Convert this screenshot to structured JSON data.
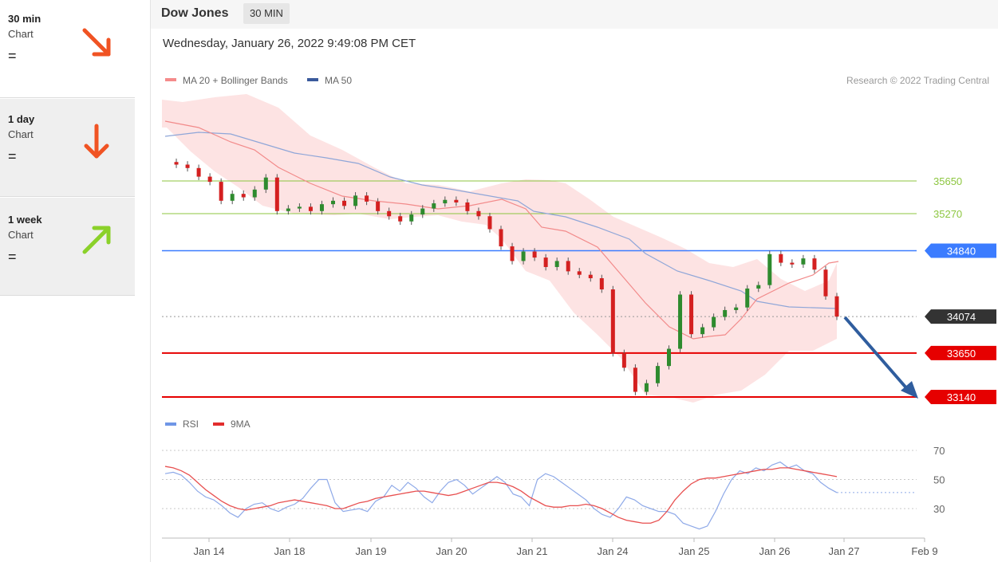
{
  "sidebar": {
    "items": [
      {
        "title": "30 min",
        "subtitle": "Chart",
        "status": "=",
        "direction": "down-right",
        "color": "#f05323"
      },
      {
        "title": "1 day",
        "subtitle": "Chart",
        "status": "=",
        "direction": "down",
        "color": "#f05323"
      },
      {
        "title": "1 week",
        "subtitle": "Chart",
        "status": "=",
        "direction": "up-right",
        "color": "#8bd12a"
      }
    ]
  },
  "header": {
    "symbol": "Dow Jones",
    "timeframe": "30 MIN",
    "datetime": "Wednesday, January 26, 2022 9:49:08 PM CET"
  },
  "legend": {
    "ma20": "MA 20 + Bollinger Bands",
    "ma50": "MA 50",
    "copyright": "Research © 2022 Trading Central",
    "rsi": "RSI",
    "ma9": "9MA"
  },
  "chart_data": {
    "type": "line",
    "x_labels": [
      "Jan 14",
      "Jan 18",
      "Jan 19",
      "Jan 20",
      "Jan 21",
      "Jan 24",
      "Jan 25",
      "Jan 26",
      "Jan 27",
      "Feb 9"
    ],
    "levels": [
      {
        "value": 35650,
        "label": "35650",
        "kind": "resistance-minor",
        "color": "#8cc63f"
      },
      {
        "value": 35270,
        "label": "35270",
        "kind": "resistance-minor",
        "color": "#8cc63f"
      },
      {
        "value": 34840,
        "label": "34840",
        "kind": "resistance",
        "color": "#3b7cff"
      },
      {
        "value": 34074,
        "label": "34074",
        "kind": "last-price",
        "color": "#333333"
      },
      {
        "value": 33650,
        "label": "33650",
        "kind": "support",
        "color": "#e60000"
      },
      {
        "value": 33140,
        "label": "33140",
        "kind": "support",
        "color": "#e60000"
      }
    ],
    "price_ylim": [
      33090,
      36040
    ],
    "price_series": [
      35870,
      35840,
      35800,
      35700,
      35640,
      35420,
      35500,
      35460,
      35550,
      35690,
      35300,
      35330,
      35350,
      35300,
      35380,
      35420,
      35360,
      35480,
      35410,
      35300,
      35240,
      35180,
      35260,
      35330,
      35390,
      35430,
      35400,
      35300,
      35240,
      35090,
      34890,
      34720,
      34830,
      34760,
      34650,
      34720,
      34600,
      34560,
      34520,
      34390,
      33650,
      33480,
      33200,
      33300,
      33500,
      33700,
      34330,
      33870,
      33950,
      34070,
      34150,
      34180,
      34400,
      34440,
      34800,
      34700,
      34680,
      34750,
      34620,
      34310,
      34074
    ],
    "rsi": {
      "ylim": [
        10,
        80
      ],
      "ticks": [
        70,
        50,
        30
      ],
      "rsi_values": [
        54,
        55,
        53,
        48,
        42,
        38,
        36,
        32,
        27,
        24,
        30,
        33,
        34,
        30,
        28,
        31,
        33,
        37,
        44,
        50,
        50,
        34,
        28,
        29,
        30,
        28,
        35,
        38,
        46,
        42,
        48,
        44,
        38,
        34,
        42,
        48,
        50,
        46,
        40,
        44,
        48,
        52,
        48,
        40,
        38,
        32,
        50,
        54,
        52,
        48,
        44,
        40,
        36,
        30,
        26,
        24,
        30,
        38,
        36,
        32,
        30,
        28,
        28,
        26,
        20,
        18,
        16,
        18,
        28,
        40,
        50,
        56,
        54,
        58,
        56,
        60,
        62,
        58,
        60,
        56,
        54,
        48,
        44,
        41
      ],
      "ma9_values": [
        59,
        58,
        56,
        53,
        48,
        43,
        39,
        35,
        32,
        30,
        29,
        30,
        31,
        32,
        34,
        35,
        36,
        35,
        34,
        33,
        32,
        30,
        30,
        32,
        34,
        35,
        37,
        38,
        39,
        40,
        41,
        42,
        42,
        41,
        40,
        39,
        40,
        42,
        44,
        46,
        48,
        48,
        47,
        45,
        42,
        38,
        35,
        32,
        31,
        31,
        32,
        32,
        33,
        32,
        30,
        27,
        24,
        22,
        21,
        20,
        20,
        22,
        28,
        36,
        42,
        47,
        50,
        51,
        51,
        52,
        53,
        54,
        55,
        56,
        57,
        57,
        58,
        58,
        57,
        56,
        55,
        54,
        53,
        52
      ]
    },
    "forecast": {
      "from": 34074,
      "to": 33140,
      "direction": "down"
    }
  }
}
